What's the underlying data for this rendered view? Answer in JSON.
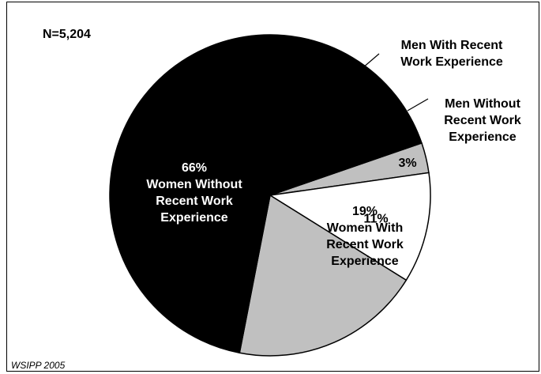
{
  "annotations": {
    "n_label": "N=5,204",
    "source": "WSIPP 2005"
  },
  "colors": {
    "black": "#000000",
    "gray": "#c0c0c0",
    "white": "#ffffff"
  },
  "chart_data": {
    "type": "pie",
    "title": "",
    "slices": [
      {
        "label": "Men With Recent Work Experience",
        "lines": [
          "Men With Recent",
          "Work Experience"
        ],
        "value": 3,
        "percent_label": "3%",
        "color": "#c0c0c0",
        "label_inside": false
      },
      {
        "label": "Men Without Recent Work Experience",
        "lines": [
          "Men Without",
          "Recent Work",
          "Experience"
        ],
        "value": 11,
        "percent_label": "11%",
        "color": "#ffffff",
        "label_inside": false
      },
      {
        "label": "Women With Recent Work Experience",
        "lines": [
          "19%",
          "Women With",
          "Recent Work",
          "Experience"
        ],
        "value": 19,
        "percent_label": "19%",
        "color": "#c0c0c0",
        "label_inside": true
      },
      {
        "label": "Women Without Recent Work Experience",
        "lines": [
          "66%",
          "Women Without",
          "Recent Work",
          "Experience"
        ],
        "value": 66,
        "percent_label": "66%",
        "color": "#000000",
        "label_inside": true
      }
    ]
  }
}
